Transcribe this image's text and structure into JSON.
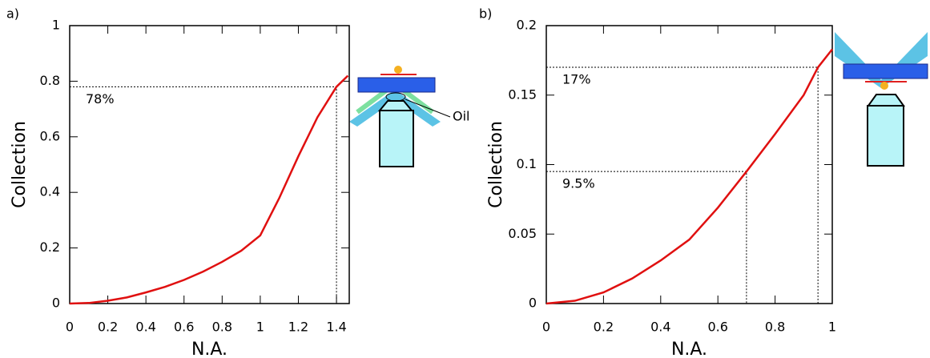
{
  "chart_data": [
    {
      "type": "line",
      "panel_label": "a)",
      "xlabel": "N.A.",
      "ylabel": "Collection",
      "x": [
        0,
        0.1,
        0.2,
        0.3,
        0.4,
        0.5,
        0.6,
        0.7,
        0.8,
        0.9,
        1.0,
        1.1,
        1.2,
        1.3,
        1.4,
        1.46
      ],
      "series": [
        {
          "color": "#e01010",
          "values": [
            0,
            0.002,
            0.01,
            0.022,
            0.04,
            0.06,
            0.085,
            0.115,
            0.15,
            0.19,
            0.245,
            0.38,
            0.53,
            0.67,
            0.78,
            0.82
          ]
        }
      ],
      "xlim": [
        0,
        1.467
      ],
      "ylim": [
        0,
        1
      ],
      "xticks": [
        0,
        0.2,
        0.4,
        0.6,
        0.8,
        1,
        1.2,
        1.4
      ],
      "yticks": [
        0,
        0.2,
        0.4,
        0.6,
        0.8,
        1
      ],
      "annotations": [
        {
          "text": "78%",
          "x": 1.4,
          "y": 0.78
        }
      ],
      "illustration_label": "Oil"
    },
    {
      "type": "line",
      "panel_label": "b)",
      "xlabel": "N.A.",
      "ylabel": "Collection",
      "x": [
        0,
        0.1,
        0.2,
        0.3,
        0.4,
        0.5,
        0.6,
        0.7,
        0.8,
        0.9,
        0.95,
        1.0
      ],
      "series": [
        {
          "color": "#e01010",
          "values": [
            0,
            0.002,
            0.008,
            0.018,
            0.031,
            0.046,
            0.069,
            0.095,
            0.122,
            0.15,
            0.17,
            0.183
          ]
        }
      ],
      "xlim": [
        0,
        1
      ],
      "ylim": [
        0,
        0.2
      ],
      "xticks": [
        0,
        0.2,
        0.4,
        0.6,
        0.8,
        1
      ],
      "yticks": [
        0,
        0.05,
        0.1,
        0.15,
        0.2
      ],
      "annotations": [
        {
          "text": "17%",
          "x": 0.95,
          "y": 0.17
        },
        {
          "text": "9.5%",
          "x": 0.7,
          "y": 0.095
        }
      ]
    }
  ]
}
